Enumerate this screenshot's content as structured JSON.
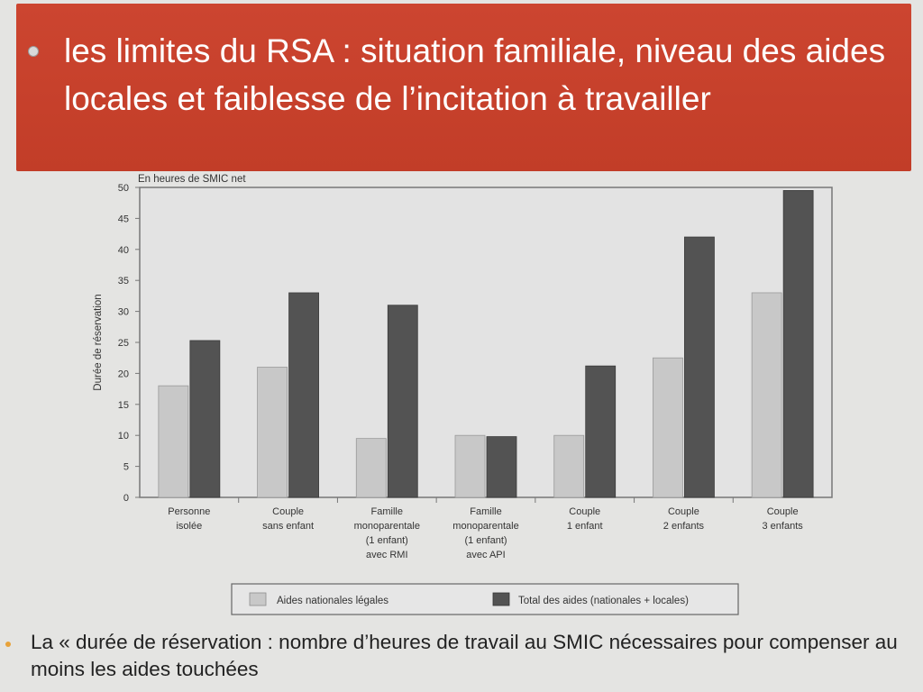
{
  "slide": {
    "title": "les limites du RSA : situation familiale, niveau des aides locales et faiblesse de l’incitation à travailler",
    "body_text": "La « durée de réservation : nombre d’heures de travail au SMIC nécessaires pour compenser au moins les aides touchées"
  },
  "colors": {
    "band": "#c9412c",
    "series_light": "#c8c8c8",
    "series_dark": "#535353"
  },
  "chart_data": {
    "type": "bar",
    "unit_label": "En heures de SMIC net",
    "ylabel": "Durée de réservation",
    "ylim": [
      0,
      50
    ],
    "yticks": [
      0,
      5,
      10,
      15,
      20,
      25,
      30,
      35,
      40,
      45,
      50
    ],
    "grid": false,
    "legend_position": "bottom",
    "categories": [
      [
        "Personne",
        "isolée"
      ],
      [
        "Couple",
        "sans enfant"
      ],
      [
        "Famille",
        "monoparentale",
        "(1 enfant)",
        "avec RMI"
      ],
      [
        "Famille",
        "monoparentale",
        "(1 enfant)",
        "avec API"
      ],
      [
        "Couple",
        "1 enfant"
      ],
      [
        "Couple",
        "2 enfants"
      ],
      [
        "Couple",
        "3 enfants"
      ]
    ],
    "series": [
      {
        "name": "Aides nationales légales",
        "values": [
          18,
          21,
          9.5,
          10,
          10,
          22.5,
          33
        ]
      },
      {
        "name": "Total des aides (nationales + locales)",
        "values": [
          25.3,
          33,
          31,
          9.8,
          21.2,
          42,
          49.5
        ]
      }
    ]
  }
}
